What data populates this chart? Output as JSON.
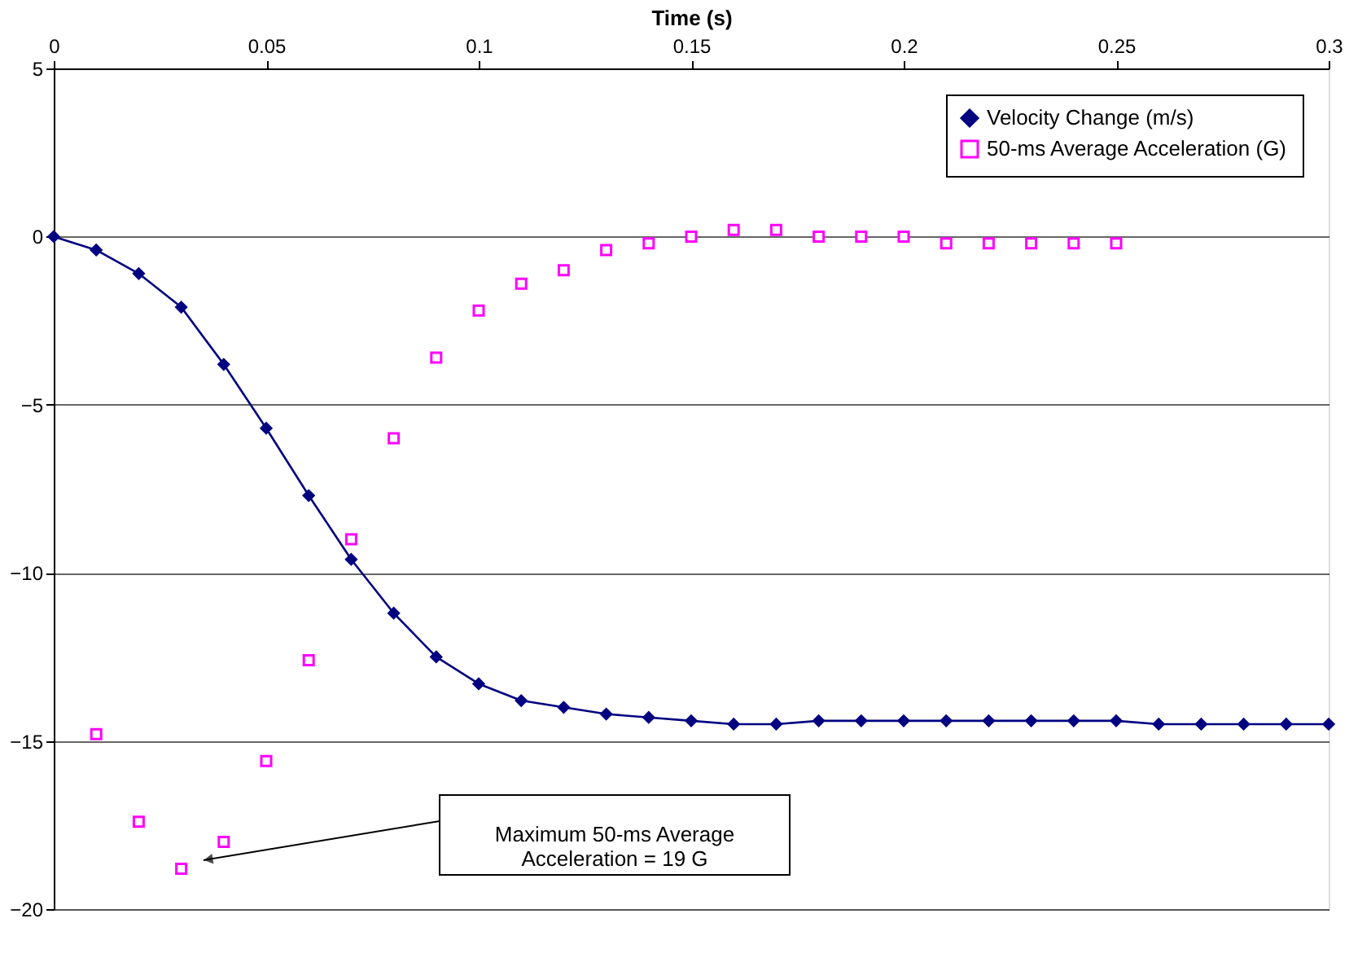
{
  "chart_data": {
    "type": "line",
    "xlabel": "Time (s)",
    "xlim": [
      0,
      0.3
    ],
    "xticks": [
      0,
      0.05,
      0.1,
      0.15,
      0.2,
      0.25,
      0.3
    ],
    "ylim": [
      -20,
      5
    ],
    "yticks": [
      5,
      0,
      -5,
      -10,
      -15,
      -20
    ],
    "grid": "y",
    "legend": "top right",
    "x": [
      0,
      0.01,
      0.02,
      0.03,
      0.04,
      0.05,
      0.06,
      0.07,
      0.08,
      0.09,
      0.1,
      0.11,
      0.12,
      0.13,
      0.14,
      0.15,
      0.16,
      0.17,
      0.18,
      0.19,
      0.2,
      0.21,
      0.22,
      0.23,
      0.24,
      0.25,
      0.26,
      0.27,
      0.28,
      0.29,
      0.3
    ],
    "series": [
      {
        "name": "Velocity Change (m/s)",
        "color": "#000080",
        "marker": "diamond",
        "values": [
          0,
          -0.4,
          -1.1,
          -2.1,
          -3.8,
          -5.7,
          -7.7,
          -9.6,
          -11.2,
          -12.5,
          -13.3,
          -13.8,
          -14.0,
          -14.2,
          -14.3,
          -14.4,
          -14.5,
          -14.5,
          -14.4,
          -14.4,
          -14.4,
          -14.4,
          -14.4,
          -14.4,
          -14.4,
          -14.4,
          -14.5,
          -14.5,
          -14.5,
          -14.5,
          -14.5
        ]
      },
      {
        "name": "50-ms Average Acceleration (G)",
        "type": "scatter",
        "color": "#ff00ff",
        "marker": "square",
        "x": [
          0.01,
          0.02,
          0.03,
          0.04,
          0.05,
          0.06,
          0.07,
          0.08,
          0.09,
          0.1,
          0.11,
          0.12,
          0.13,
          0.14,
          0.15,
          0.16,
          0.17,
          0.18,
          0.19,
          0.2,
          0.21,
          0.22,
          0.23,
          0.24,
          0.25
        ],
        "values": [
          -14.8,
          -17.4,
          -18.8,
          -18.0,
          -15.6,
          -12.6,
          -9.0,
          -6.0,
          -3.6,
          -2.2,
          -1.4,
          -1.0,
          -0.4,
          -0.2,
          0,
          0.2,
          0.2,
          0,
          0,
          0,
          -0.2,
          -0.2,
          -0.2,
          -0.2,
          -0.2
        ]
      }
    ],
    "annotations": [
      "Maximum 50-ms Average\nAcceleration = 19 G"
    ]
  }
}
